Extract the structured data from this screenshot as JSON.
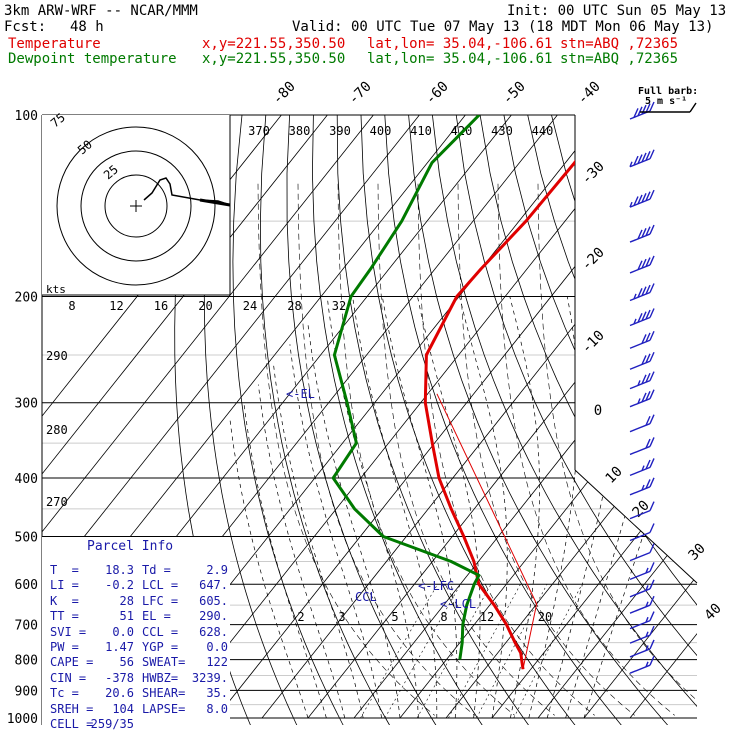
{
  "header": {
    "model": "3km ARW-WRF -- NCAR/MMM",
    "init": "Init: 00 UTC Sun 05 May 13",
    "fcst_label": "Fcst:",
    "fcst_value": "48 h",
    "valid": "Valid: 00 UTC Tue 07 May 13 (18 MDT Mon 06 May 13)",
    "temp_label": "Temperature",
    "dew_label": "Dewpoint temperature",
    "xy": "x,y=221.55,350.50",
    "latlon": "lat,lon= 35.04,-106.61",
    "stn": "stn=ABQ ,72365"
  },
  "barb_legend": {
    "title": "Full barb:",
    "value": "5 m s⁻¹"
  },
  "hodograph": {
    "kts_label": "kts",
    "ring_labels": [
      "25",
      "50",
      "75"
    ]
  },
  "parcel_info": {
    "title": "Parcel Info",
    "rows": [
      [
        "T  =",
        "18.3",
        "Td =",
        "2.9"
      ],
      [
        "LI =",
        "-0.2",
        "LCL =",
        "647."
      ],
      [
        "K  =",
        "28",
        "LFC =",
        "605."
      ],
      [
        "TT =",
        "51",
        "EL =",
        "290."
      ],
      [
        "SVI =",
        "0.0",
        "CCL =",
        "628."
      ],
      [
        "PW =",
        "1.47",
        "YGP =",
        "0.0"
      ],
      [
        "CAPE =",
        "56",
        "SWEAT=",
        "122"
      ],
      [
        "CIN =",
        "-378",
        "HWBZ=",
        "3239."
      ],
      [
        "Tc =",
        "20.6",
        "SHEAR=",
        "35."
      ],
      [
        "SREH =",
        "104",
        "LAPSE=",
        "8.0"
      ],
      [
        "CELL =",
        "259/35",
        "",
        ""
      ]
    ]
  },
  "chart_data": {
    "type": "skew-t",
    "pressure_levels": [
      100,
      200,
      300,
      400,
      500,
      600,
      700,
      800,
      900,
      1000
    ],
    "pressure_labels": [
      "100",
      "200",
      "300",
      "400",
      "500",
      "600",
      "700",
      "800",
      "900",
      "1000"
    ],
    "isotherm_labels": [
      "-80",
      "-70",
      "-60",
      "-50",
      "-40",
      "-30",
      "-20",
      "-10",
      "0",
      "10",
      "20",
      "30",
      "40"
    ],
    "theta_e_labels": [
      "370",
      "380",
      "390",
      "400",
      "410",
      "420",
      "430",
      "440"
    ],
    "mixing_ratio_top_labels": [
      "8",
      "12",
      "16",
      "20",
      "24",
      "28",
      "32"
    ],
    "mixing_ratio_bottom_labels": [
      "2",
      "3",
      "5",
      "8",
      "12",
      "20"
    ],
    "theta_labels": [
      "290",
      "280",
      "270"
    ],
    "annotations": {
      "el": "<-EL",
      "lfc": "<-LFC",
      "lcl": "<-LCL",
      "ccl": "CCL"
    },
    "temperature": {
      "name": "Temperature",
      "color": "#e00000",
      "points": [
        [
          100,
          -58.5
        ],
        [
          120,
          -58.0
        ],
        [
          150,
          -58.5
        ],
        [
          180,
          -60.0
        ],
        [
          200,
          -60.5
        ],
        [
          250,
          -57.0
        ],
        [
          300,
          -49.0
        ],
        [
          350,
          -40.5
        ],
        [
          400,
          -33.0
        ],
        [
          450,
          -25.0
        ],
        [
          500,
          -17.5
        ],
        [
          550,
          -11.0
        ],
        [
          600,
          -6.0
        ],
        [
          650,
          1.0
        ],
        [
          700,
          7.0
        ],
        [
          750,
          12.0
        ],
        [
          780,
          15.0
        ],
        [
          830,
          18.3
        ]
      ]
    },
    "dewpoint": {
      "name": "Dewpoint temperature",
      "color": "#007a00",
      "points": [
        [
          100,
          -87.0
        ],
        [
          120,
          -89.0
        ],
        [
          150,
          -85.5
        ],
        [
          180,
          -84.0
        ],
        [
          200,
          -83.5
        ],
        [
          250,
          -77.0
        ],
        [
          300,
          -66.0
        ],
        [
          350,
          -57.0
        ],
        [
          400,
          -56.0
        ],
        [
          450,
          -46.0
        ],
        [
          500,
          -35.0
        ],
        [
          550,
          -16.0
        ],
        [
          580,
          -7.5
        ],
        [
          600,
          -7.0
        ],
        [
          650,
          -5.0
        ],
        [
          700,
          -2.5
        ],
        [
          750,
          0.5
        ],
        [
          800,
          2.9
        ]
      ]
    },
    "wind_barbs": [
      {
        "p": 100,
        "spd": 50
      },
      {
        "p": 120,
        "spd": 48
      },
      {
        "p": 140,
        "spd": 45
      },
      {
        "p": 160,
        "spd": 42
      },
      {
        "p": 180,
        "spd": 40
      },
      {
        "p": 200,
        "spd": 38
      },
      {
        "p": 220,
        "spd": 35
      },
      {
        "p": 240,
        "spd": 33
      },
      {
        "p": 260,
        "spd": 30
      },
      {
        "p": 280,
        "spd": 28
      },
      {
        "p": 300,
        "spd": 26
      },
      {
        "p": 330,
        "spd": 22
      },
      {
        "p": 360,
        "spd": 20
      },
      {
        "p": 390,
        "spd": 18
      },
      {
        "p": 420,
        "spd": 15
      },
      {
        "p": 460,
        "spd": 14
      },
      {
        "p": 500,
        "spd": 12
      },
      {
        "p": 540,
        "spd": 10
      },
      {
        "p": 580,
        "spd": 9
      },
      {
        "p": 620,
        "spd": 8
      },
      {
        "p": 660,
        "spd": 8
      },
      {
        "p": 700,
        "spd": 8
      },
      {
        "p": 740,
        "spd": 7
      },
      {
        "p": 780,
        "spd": 6
      },
      {
        "p": 830,
        "spd": 5
      }
    ],
    "hodograph_trace": [
      [
        0,
        0
      ],
      [
        10,
        -10
      ],
      [
        20,
        -22
      ],
      [
        28,
        -27
      ],
      [
        32,
        -25
      ],
      [
        36,
        -10
      ],
      [
        55,
        -5
      ],
      [
        75,
        -2
      ],
      [
        92,
        2
      ]
    ]
  }
}
